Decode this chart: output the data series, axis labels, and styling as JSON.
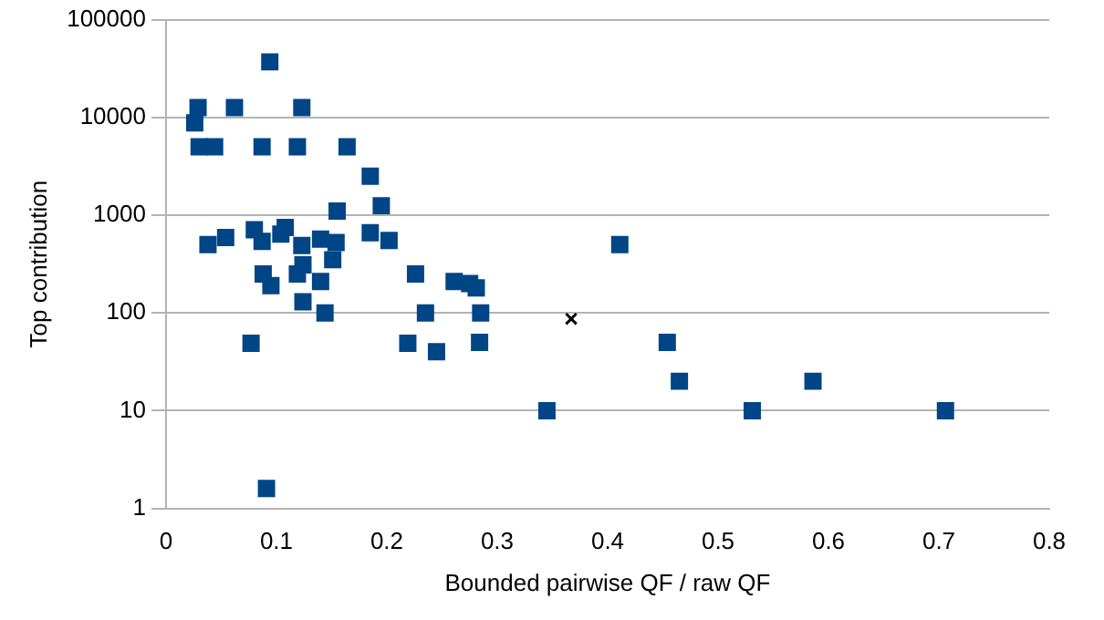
{
  "chart_data": {
    "type": "scatter",
    "xlabel": "Bounded pairwise QF / raw QF",
    "ylabel": "Top contribution",
    "log": "y",
    "grid": "y",
    "marker": "square",
    "legend": false,
    "xlim": [
      0,
      0.8
    ],
    "xticks": [
      0,
      0.1,
      0.2,
      0.3,
      0.4,
      0.5,
      0.6,
      0.7,
      0.8
    ],
    "ylim": [
      1,
      100000
    ],
    "yticks": [
      1,
      10,
      100,
      1000,
      10000,
      100000
    ],
    "series": [
      {
        "color": "#000000",
        "marker": "cross",
        "x": [
          0.367
        ],
        "values": [
          87
        ]
      },
      {
        "color": "#004586",
        "x": [
          0.094,
          0.029,
          0.062,
          0.123,
          0.026,
          0.03,
          0.044,
          0.087,
          0.119,
          0.164,
          0.185,
          0.195,
          0.155,
          0.038,
          0.054,
          0.08,
          0.087,
          0.108,
          0.104,
          0.123,
          0.14,
          0.154,
          0.185,
          0.202,
          0.088,
          0.095,
          0.119,
          0.124,
          0.14,
          0.124,
          0.144,
          0.151,
          0.077,
          0.219,
          0.226,
          0.091,
          0.261,
          0.275,
          0.281,
          0.235,
          0.285,
          0.245,
          0.284,
          0.345,
          0.411,
          0.454,
          0.465,
          0.531,
          0.586,
          0.706
        ],
        "values": [
          37000,
          12600,
          12600,
          12600,
          8800,
          5000,
          5000,
          5000,
          5000,
          5000,
          2500,
          1250,
          1100,
          500,
          590,
          710,
          540,
          750,
          640,
          490,
          570,
          525,
          660,
          550,
          250,
          190,
          250,
          310,
          210,
          130,
          100,
          350,
          49,
          49,
          250,
          1.6,
          210,
          200,
          180,
          100,
          100,
          40,
          50,
          10,
          500,
          50,
          20,
          10,
          20,
          10
        ]
      }
    ]
  }
}
